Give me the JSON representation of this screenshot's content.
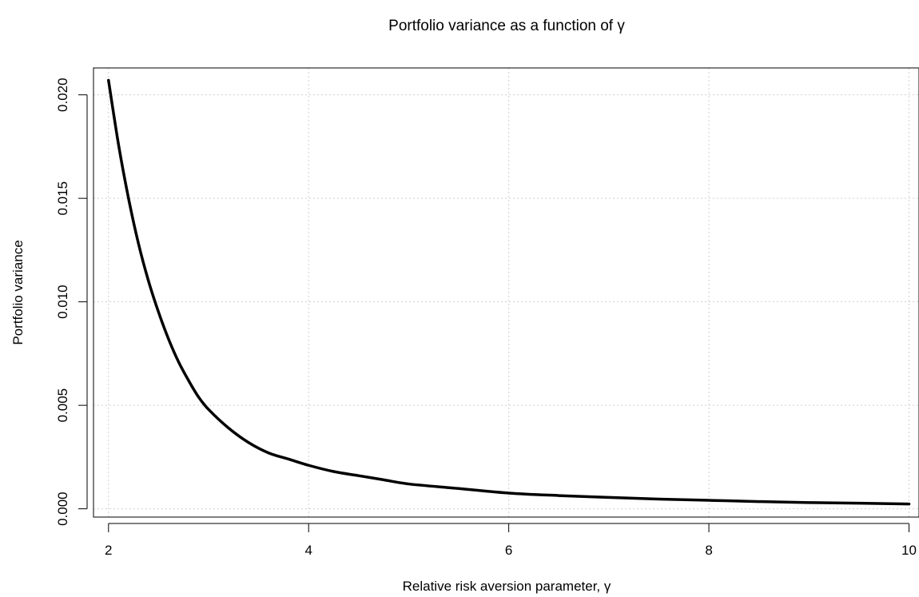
{
  "chart_data": {
    "type": "line",
    "title": "Portfolio variance as a function of γ",
    "xlabel": "Relative risk aversion parameter, γ",
    "ylabel": "Portfolio variance",
    "xlim": [
      1.85,
      10.1
    ],
    "ylim": [
      -0.0004,
      0.0213
    ],
    "x_ticks": [
      2,
      4,
      6,
      8,
      10
    ],
    "x_tick_labels": [
      "2",
      "4",
      "6",
      "8",
      "10"
    ],
    "y_ticks": [
      0.0,
      0.005,
      0.01,
      0.015,
      0.02
    ],
    "y_tick_labels": [
      "0.000",
      "0.005",
      "0.010",
      "0.015",
      "0.020"
    ],
    "grid": true,
    "legend": "none",
    "series_color": "#000000",
    "series": [
      {
        "x": [
          2.0,
          2.1,
          2.2,
          2.3,
          2.4,
          2.5,
          2.6,
          2.7,
          2.8,
          2.9,
          3.0,
          3.2,
          3.4,
          3.6,
          3.8,
          4.0,
          4.25,
          4.5,
          4.75,
          5.0,
          5.5,
          6.0,
          6.5,
          7.0,
          7.5,
          8.0,
          8.5,
          9.0,
          9.5,
          10.0
        ],
        "y": [
          0.0207,
          0.0176,
          0.015,
          0.0128,
          0.011,
          0.0095,
          0.0082,
          0.0071,
          0.0062,
          0.0054,
          0.0048,
          0.0039,
          0.0032,
          0.0027,
          0.0024,
          0.0021,
          0.0018,
          0.0016,
          0.0014,
          0.0012,
          0.00098,
          0.00076,
          0.00064,
          0.00055,
          0.00047,
          0.00041,
          0.00035,
          0.0003,
          0.00027,
          0.00023
        ]
      }
    ]
  }
}
